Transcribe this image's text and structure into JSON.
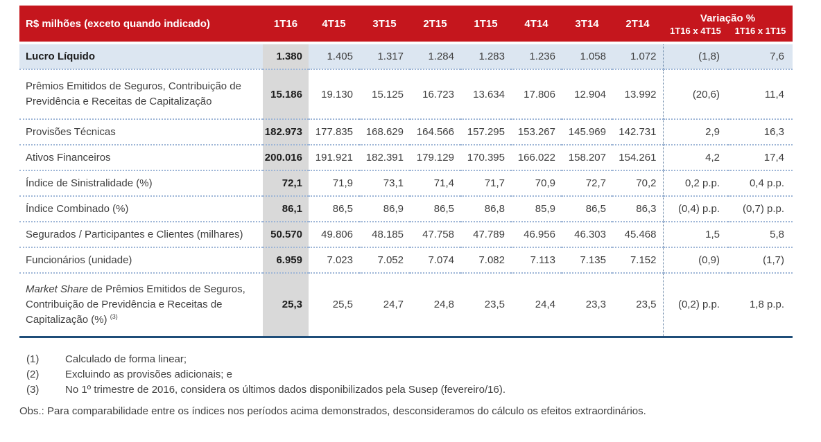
{
  "table": {
    "unit_header": "R$ milhões (exceto quando indicado)",
    "quarter_columns": [
      "1T16",
      "4T15",
      "3T15",
      "2T15",
      "1T15",
      "4T14",
      "3T14",
      "2T14"
    ],
    "variation_header": "Variação %",
    "variation_columns": [
      "1T16 x 4T15",
      "1T16 x 1T15"
    ],
    "rows": [
      {
        "label": "Lucro Líquido",
        "bold_label": true,
        "highlight_row": true,
        "values": [
          "1.380",
          "1.405",
          "1.317",
          "1.284",
          "1.283",
          "1.236",
          "1.058",
          "1.072"
        ],
        "variations": [
          "(1,8)",
          "7,6"
        ]
      },
      {
        "label": "Prêmios Emitidos de Seguros, Contribuição de Previdência e Receitas de Capitalização",
        "values": [
          "15.186",
          "19.130",
          "15.125",
          "16.723",
          "13.634",
          "17.806",
          "12.904",
          "13.992"
        ],
        "variations": [
          "(20,6)",
          "11,4"
        ]
      },
      {
        "label": "Provisões Técnicas",
        "values": [
          "182.973",
          "177.835",
          "168.629",
          "164.566",
          "157.295",
          "153.267",
          "145.969",
          "142.731"
        ],
        "variations": [
          "2,9",
          "16,3"
        ]
      },
      {
        "label": "Ativos Financeiros",
        "values": [
          "200.016",
          "191.921",
          "182.391",
          "179.129",
          "170.395",
          "166.022",
          "158.207",
          "154.261"
        ],
        "variations": [
          "4,2",
          "17,4"
        ]
      },
      {
        "label": "Índice de Sinistralidade (%)",
        "values": [
          "72,1",
          "71,9",
          "73,1",
          "71,4",
          "71,7",
          "70,9",
          "72,7",
          "70,2"
        ],
        "variations": [
          "0,2 p.p.",
          "0,4 p.p."
        ]
      },
      {
        "label": "Índice Combinado (%)",
        "values": [
          "86,1",
          "86,5",
          "86,9",
          "86,5",
          "86,8",
          "85,9",
          "86,5",
          "86,3"
        ],
        "variations": [
          "(0,4) p.p.",
          "(0,7) p.p."
        ]
      },
      {
        "label": "Segurados / Participantes e Clientes (milhares)",
        "values": [
          "50.570",
          "49.806",
          "48.185",
          "47.758",
          "47.789",
          "46.956",
          "46.303",
          "45.468"
        ],
        "variations": [
          "1,5",
          "5,8"
        ]
      },
      {
        "label": "Funcionários (unidade)",
        "values": [
          "6.959",
          "7.023",
          "7.052",
          "7.074",
          "7.082",
          "7.113",
          "7.135",
          "7.152"
        ],
        "variations": [
          "(0,9)",
          "(1,7)"
        ]
      },
      {
        "label_parts": {
          "italic": "Market Share",
          "text": " de Prêmios Emitidos de Seguros, Contribuição de Previdência e Receitas de Capitalização (%) ",
          "sup": "(3)"
        },
        "values": [
          "25,3",
          "25,5",
          "24,7",
          "24,8",
          "23,5",
          "24,4",
          "23,3",
          "23,5"
        ],
        "variations": [
          "(0,2) p.p.",
          "1,8 p.p."
        ]
      }
    ]
  },
  "footnotes": {
    "items": [
      {
        "marker": "(1)",
        "text": "Calculado de forma linear;"
      },
      {
        "marker": "(2)",
        "text": "Excluindo as provisões adicionais; e"
      },
      {
        "marker": "(3)",
        "text": "No 1º trimestre de 2016, considera os últimos dados disponibilizados pela Susep (fevereiro/16)."
      }
    ],
    "obs": "Obs.: Para comparabilidade entre os índices nos períodos acima demonstrados, desconsideramos do cálculo os efeitos extraordinários."
  },
  "colors": {
    "header_red": "#C5161D",
    "highlight_row_blue": "#DCE6F1",
    "highlight_col_gray": "#D9D9D9",
    "separator_blue": "#9DB5D6",
    "bottom_border_navy": "#1F4E79",
    "text": "#3F3F3F"
  }
}
